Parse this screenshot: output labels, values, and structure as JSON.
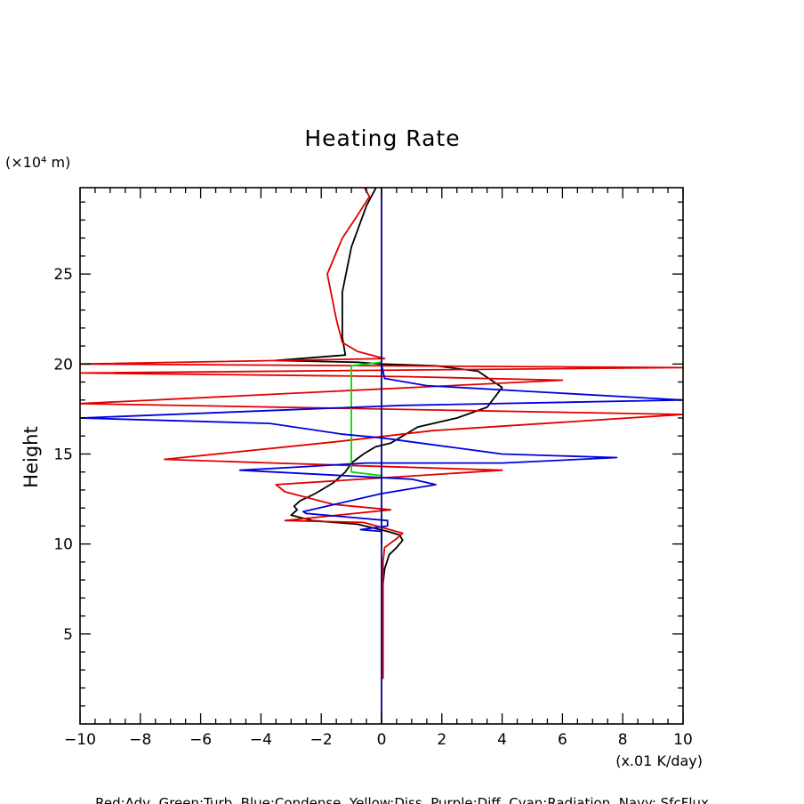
{
  "chart_data": {
    "type": "line",
    "title": "Heating Rate",
    "ylabel": "Height",
    "y_unit": "(×10⁴ m)",
    "x_unit": "(x.01 K/day)",
    "legend_text": "Red:Adv, Green:Turb, Blue:Condense, Yellow:Diss, Purple:Diff, Cyan:Radiation, Navy: SfcFlux",
    "xlim": [
      -10,
      10
    ],
    "ylim": [
      0,
      29.8
    ],
    "x_ticks": [
      -10,
      -8,
      -6,
      -4,
      -2,
      0,
      2,
      4,
      6,
      8,
      10
    ],
    "y_ticks": [
      5,
      10,
      15,
      20,
      25
    ],
    "grid": false,
    "colors": {
      "black": "#000000",
      "red": "#e00000",
      "green": "#00dd00",
      "blue": "#0000dd",
      "navy": "#000080"
    },
    "series": [
      {
        "color": "black",
        "points": [
          [
            0.05,
            7.8
          ],
          [
            0.1,
            8.6
          ],
          [
            0.25,
            9.4
          ],
          [
            0.5,
            9.8
          ],
          [
            0.7,
            10.2
          ],
          [
            0.6,
            10.5
          ],
          [
            0.2,
            10.7
          ],
          [
            -0.8,
            11.1
          ],
          [
            -2.3,
            11.3
          ],
          [
            -3.0,
            11.6
          ],
          [
            -2.8,
            11.9
          ],
          [
            -2.9,
            12.1
          ],
          [
            -2.7,
            12.4
          ],
          [
            -2.2,
            12.8
          ],
          [
            -1.6,
            13.4
          ],
          [
            -1.2,
            14.0
          ],
          [
            -1.0,
            14.5
          ],
          [
            -0.6,
            15.0
          ],
          [
            -0.2,
            15.4
          ],
          [
            0.3,
            15.6
          ],
          [
            0.6,
            15.9
          ],
          [
            1.2,
            16.5
          ],
          [
            2.5,
            17.0
          ],
          [
            3.5,
            17.6
          ],
          [
            4.0,
            18.7
          ],
          [
            3.2,
            19.6
          ],
          [
            1.8,
            19.9
          ],
          [
            0,
            20.0
          ],
          [
            -0.8,
            20.1
          ],
          [
            -3.5,
            20.2
          ],
          [
            -1.2,
            20.5
          ],
          [
            -1.3,
            21.5
          ],
          [
            -1.3,
            24.0
          ],
          [
            -1.0,
            26.5
          ],
          [
            -0.5,
            28.8
          ],
          [
            -0.15,
            29.9
          ]
        ]
      },
      {
        "color": "red",
        "points": [
          [
            -0.6,
            29.9
          ],
          [
            -0.4,
            29.3
          ],
          [
            -0.9,
            28.0
          ],
          [
            -1.3,
            27.0
          ],
          [
            -1.8,
            25.0
          ],
          [
            -1.5,
            22.5
          ],
          [
            -1.3,
            21.2
          ],
          [
            -0.8,
            20.7
          ],
          [
            0.1,
            20.3
          ],
          [
            -10,
            20.0
          ],
          [
            10,
            19.8
          ],
          [
            -10,
            19.5
          ],
          [
            0.8,
            19.3
          ],
          [
            6.0,
            19.1
          ],
          [
            -10,
            17.8
          ],
          [
            10,
            17.2
          ],
          [
            1.7,
            16.3
          ],
          [
            -1.4,
            15.7
          ],
          [
            -7.2,
            14.7
          ],
          [
            -3.6,
            14.5
          ],
          [
            4.0,
            14.1
          ],
          [
            -3.5,
            13.3
          ],
          [
            -3.2,
            12.9
          ],
          [
            -1.6,
            12.2
          ],
          [
            0.3,
            11.9
          ],
          [
            -3.2,
            11.3
          ],
          [
            -0.6,
            11.2
          ],
          [
            0.7,
            10.6
          ],
          [
            0.5,
            10.3
          ],
          [
            0.1,
            9.8
          ],
          [
            0.05,
            9.0
          ],
          [
            0.05,
            7.0
          ],
          [
            0.05,
            5.0
          ],
          [
            0.05,
            2.5
          ]
        ]
      },
      {
        "color": "green",
        "points": [
          [
            0,
            20.1
          ],
          [
            -1.0,
            19.9
          ],
          [
            -1.0,
            15.0
          ],
          [
            -1.0,
            14.0
          ],
          [
            0,
            13.8
          ]
        ]
      },
      {
        "color": "blue",
        "points": [
          [
            0,
            20.0
          ],
          [
            0.1,
            19.2
          ],
          [
            1.5,
            18.8
          ],
          [
            10,
            18.0
          ],
          [
            0.7,
            17.7
          ],
          [
            -10,
            17.0
          ],
          [
            -3.7,
            16.7
          ],
          [
            -1.3,
            16.1
          ],
          [
            0,
            15.9
          ],
          [
            4.0,
            15.0
          ],
          [
            7.8,
            14.8
          ],
          [
            4.0,
            14.5
          ],
          [
            -0.5,
            14.5
          ],
          [
            -2.5,
            14.3
          ],
          [
            -4.7,
            14.1
          ],
          [
            1.0,
            13.6
          ],
          [
            1.8,
            13.3
          ],
          [
            0,
            12.8
          ],
          [
            -2.6,
            11.8
          ],
          [
            -2.5,
            11.7
          ],
          [
            0.2,
            11.3
          ],
          [
            0.2,
            11.0
          ],
          [
            -0.7,
            10.8
          ],
          [
            0,
            10.7
          ],
          [
            0,
            10.0
          ]
        ]
      },
      {
        "color": "navy",
        "points": [
          [
            0,
            0
          ],
          [
            0,
            29.8
          ]
        ]
      }
    ]
  }
}
